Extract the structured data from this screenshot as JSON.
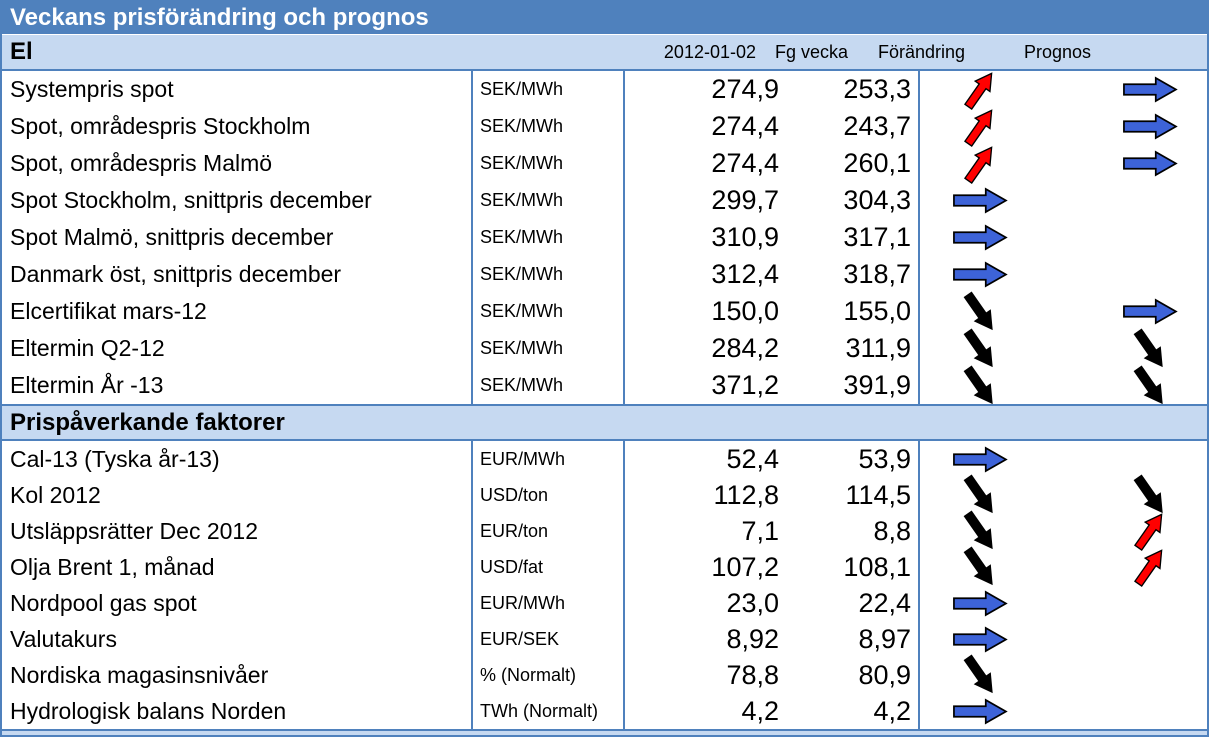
{
  "title": "Veckans prisförändring och prognos",
  "columns": {
    "date": "2012-01-02",
    "prev": "Fg vecka",
    "change": "Förändring",
    "forecast": "Prognos"
  },
  "colors": {
    "title_bar_bg": "#4F81BD",
    "band_bg": "#C6D9F1",
    "border_blue": "#4F81BD",
    "arrow_up_red": "#FF0000",
    "arrow_right_blue": "#3D63D8",
    "arrow_down_black": "#000000"
  },
  "arrow_icons": {
    "up": "up-right-arrow-icon",
    "right": "right-arrow-icon",
    "down": "down-right-arrow-icon"
  },
  "sections": [
    {
      "label": "El",
      "rows": [
        {
          "name": "Systempris spot",
          "unit": "SEK/MWh",
          "value": "274,9",
          "prev": "253,3",
          "change": "up",
          "forecast": "right"
        },
        {
          "name": "Spot, områdespris Stockholm",
          "unit": "SEK/MWh",
          "value": "274,4",
          "prev": "243,7",
          "change": "up",
          "forecast": "right"
        },
        {
          "name": "Spot, områdespris Malmö",
          "unit": "SEK/MWh",
          "value": "274,4",
          "prev": "260,1",
          "change": "up",
          "forecast": "right"
        },
        {
          "name": "Spot Stockholm, snittpris december",
          "unit": "SEK/MWh",
          "value": "299,7",
          "prev": "304,3",
          "change": "right",
          "forecast": "none"
        },
        {
          "name": "Spot Malmö, snittpris december",
          "unit": "SEK/MWh",
          "value": "310,9",
          "prev": "317,1",
          "change": "right",
          "forecast": "none"
        },
        {
          "name": "Danmark öst, snittpris december",
          "unit": "SEK/MWh",
          "value": "312,4",
          "prev": "318,7",
          "change": "right",
          "forecast": "none"
        },
        {
          "name": "Elcertifikat mars-12",
          "unit": "SEK/MWh",
          "value": "150,0",
          "prev": "155,0",
          "change": "down",
          "forecast": "right"
        },
        {
          "name": "Eltermin Q2-12",
          "unit": "SEK/MWh",
          "value": "284,2",
          "prev": "311,9",
          "change": "down",
          "forecast": "down"
        },
        {
          "name": "Eltermin År -13",
          "unit": "SEK/MWh",
          "value": "371,2",
          "prev": "391,9",
          "change": "down",
          "forecast": "down"
        }
      ]
    },
    {
      "label": "Prispåverkande faktorer",
      "rows": [
        {
          "name": "Cal-13 (Tyska år-13)",
          "unit": "EUR/MWh",
          "value": "52,4",
          "prev": "53,9",
          "change": "right",
          "forecast": "none"
        },
        {
          "name": "Kol 2012",
          "unit": "USD/ton",
          "value": "112,8",
          "prev": "114,5",
          "change": "down",
          "forecast": "down"
        },
        {
          "name": "Utsläppsrätter Dec 2012",
          "unit": "EUR/ton",
          "value": "7,1",
          "prev": "8,8",
          "change": "down",
          "forecast": "up"
        },
        {
          "name": "Olja Brent 1, månad",
          "unit": "USD/fat",
          "value": "107,2",
          "prev": "108,1",
          "change": "down",
          "forecast": "up"
        },
        {
          "name": "Nordpool gas spot",
          "unit": "EUR/MWh",
          "value": "23,0",
          "prev": "22,4",
          "change": "right",
          "forecast": "none"
        },
        {
          "name": "Valutakurs",
          "unit": "EUR/SEK",
          "value": "8,92",
          "prev": "8,97",
          "change": "right",
          "forecast": "none"
        },
        {
          "name": "Nordiska magasinsnivåer",
          "unit": "% (Normalt)",
          "value": "78,8",
          "prev": "80,9",
          "change": "down",
          "forecast": "none"
        },
        {
          "name": "Hydrologisk balans Norden",
          "unit": "TWh (Normalt)",
          "value": "4,2",
          "prev": "4,2",
          "change": "right",
          "forecast": "none"
        }
      ]
    }
  ]
}
